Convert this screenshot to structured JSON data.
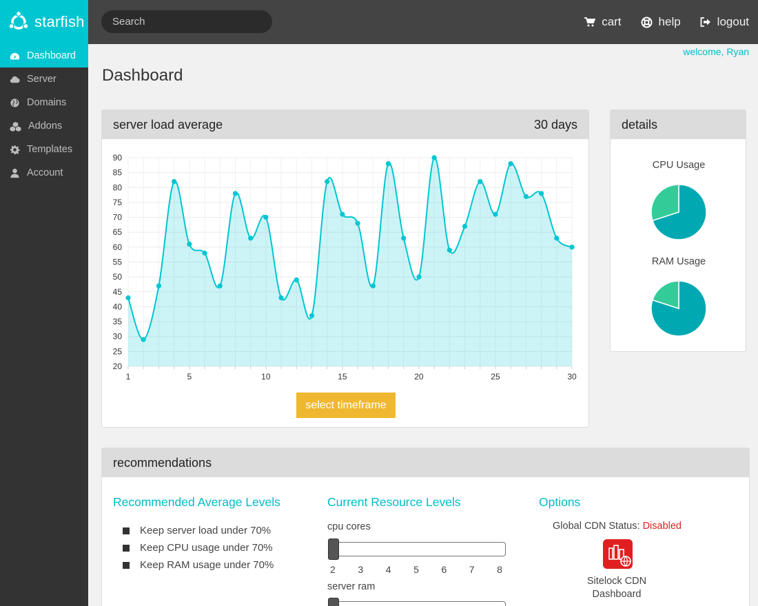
{
  "brand": {
    "name": "starfish"
  },
  "search": {
    "placeholder": "Search"
  },
  "topnav": [
    {
      "label": "cart",
      "icon": "cart-icon"
    },
    {
      "label": "help",
      "icon": "lifebuoy-icon"
    },
    {
      "label": "logout",
      "icon": "logout-icon"
    }
  ],
  "sidebar": {
    "items": [
      {
        "label": "Dashboard",
        "icon": "dashboard-icon",
        "active": true
      },
      {
        "label": "Server",
        "icon": "cloud-icon",
        "active": false
      },
      {
        "label": "Domains",
        "icon": "globe-icon",
        "active": false
      },
      {
        "label": "Addons",
        "icon": "cubes-icon",
        "active": false
      },
      {
        "label": "Templates",
        "icon": "gear-icon",
        "active": false
      },
      {
        "label": "Account",
        "icon": "user-icon",
        "active": false
      }
    ]
  },
  "header": {
    "welcome": "welcome, Ryan",
    "title": "Dashboard"
  },
  "load_panel": {
    "title": "server load average",
    "range": "30 days",
    "button": "select timeframe"
  },
  "details_panel": {
    "title": "details",
    "cpu_label": "CPU Usage",
    "ram_label": "RAM Usage"
  },
  "colors": {
    "accent": "#00c6d1",
    "pie_main": "#00a9b2",
    "pie_slice": "#33cc99",
    "button": "#f0b830",
    "danger": "#e02020"
  },
  "recommendations": {
    "title": "recommendations",
    "levels_title": "Recommended Average Levels",
    "levels": [
      "Keep server load under 70%",
      "Keep CPU usage under 70%",
      "Keep RAM usage under 70%"
    ],
    "current_title": "Current Resource Levels",
    "cpu_label": "cpu cores",
    "cpu_ticks": [
      "2",
      "3",
      "4",
      "5",
      "6",
      "7",
      "8"
    ],
    "cpu_value": 2,
    "ram_label": "server ram",
    "options_title": "Options",
    "cdn_status_label": "Global CDN Status:",
    "cdn_status_value": "Disabled",
    "cdn_caption_line1": "Sitelock CDN",
    "cdn_caption_line2": "Dashboard"
  },
  "chart_data": {
    "type": "area",
    "x": [
      1,
      2,
      3,
      4,
      5,
      6,
      7,
      8,
      9,
      10,
      11,
      12,
      13,
      14,
      15,
      16,
      17,
      18,
      19,
      20,
      21,
      22,
      23,
      24,
      25,
      26,
      27,
      28,
      29,
      30
    ],
    "values": [
      43,
      29,
      47,
      82,
      61,
      58,
      47,
      78,
      63,
      70,
      43,
      49,
      37,
      82,
      71,
      68,
      47,
      88,
      63,
      50,
      90,
      59,
      67,
      82,
      71,
      88,
      77,
      78,
      63,
      60
    ],
    "ylim": [
      20,
      90
    ],
    "yticks": [
      20,
      25,
      30,
      35,
      40,
      45,
      50,
      55,
      60,
      65,
      70,
      75,
      80,
      85,
      90
    ],
    "xticks": [
      1,
      5,
      10,
      15,
      20,
      25,
      30
    ],
    "grid": true,
    "pies": [
      {
        "name": "CPU Usage",
        "values": [
          70,
          30
        ]
      },
      {
        "name": "RAM Usage",
        "values": [
          80,
          20
        ]
      }
    ]
  }
}
